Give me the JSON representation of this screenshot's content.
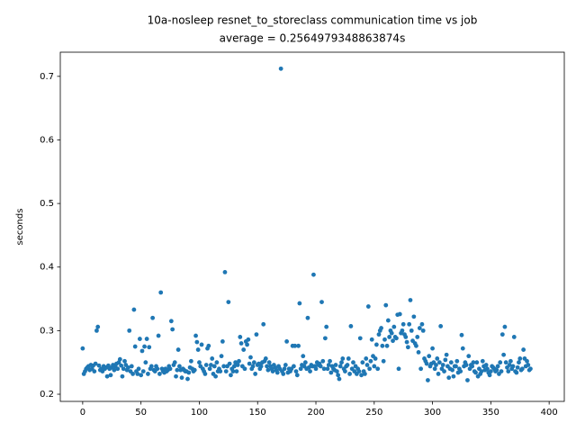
{
  "chart_data": {
    "type": "scatter",
    "title": "10a-nosleep resnet_to_storeclass communication time vs job",
    "subtitle": "average = 0.2564979348863874s",
    "y_label": "seconds",
    "color": "#1f77b4",
    "xlim": [
      -19.2,
      413
    ],
    "ylim": [
      0.1887,
      0.738
    ],
    "xticks": [
      0,
      50,
      100,
      150,
      200,
      250,
      300,
      350,
      400
    ],
    "yticks": [
      0.2,
      0.3,
      0.4,
      0.5,
      0.6,
      0.7
    ],
    "x": [
      0,
      1,
      2,
      3,
      4,
      5,
      6,
      7,
      8,
      9,
      10,
      11,
      12,
      13,
      14,
      15,
      16,
      17,
      18,
      19,
      20,
      21,
      22,
      23,
      24,
      25,
      26,
      27,
      28,
      29,
      30,
      31,
      32,
      33,
      34,
      35,
      36,
      37,
      38,
      39,
      40,
      41,
      42,
      43,
      44,
      45,
      46,
      47,
      48,
      49,
      50,
      51,
      52,
      53,
      54,
      55,
      56,
      57,
      58,
      59,
      60,
      61,
      62,
      63,
      64,
      65,
      66,
      67,
      68,
      69,
      70,
      71,
      72,
      73,
      74,
      75,
      76,
      77,
      78,
      79,
      80,
      81,
      82,
      83,
      84,
      85,
      86,
      87,
      88,
      89,
      90,
      91,
      92,
      93,
      94,
      95,
      96,
      97,
      98,
      99,
      100,
      101,
      102,
      103,
      104,
      105,
      106,
      107,
      108,
      109,
      110,
      111,
      112,
      113,
      114,
      115,
      116,
      117,
      118,
      119,
      120,
      121,
      122,
      123,
      124,
      125,
      126,
      127,
      128,
      129,
      130,
      131,
      132,
      133,
      134,
      135,
      136,
      137,
      138,
      139,
      140,
      141,
      142,
      143,
      144,
      145,
      146,
      147,
      148,
      149,
      150,
      151,
      152,
      153,
      154,
      155,
      156,
      157,
      158,
      159,
      160,
      161,
      162,
      163,
      164,
      165,
      166,
      167,
      168,
      169,
      170,
      171,
      172,
      173,
      174,
      175,
      176,
      177,
      178,
      179,
      180,
      181,
      182,
      183,
      184,
      185,
      186,
      187,
      188,
      189,
      190,
      191,
      192,
      193,
      194,
      195,
      196,
      197,
      198,
      199,
      200,
      201,
      202,
      203,
      204,
      205,
      206,
      207,
      208,
      209,
      210,
      211,
      212,
      213,
      214,
      215,
      216,
      217,
      218,
      219,
      220,
      221,
      222,
      223,
      224,
      225,
      226,
      227,
      228,
      229,
      230,
      231,
      232,
      233,
      234,
      235,
      236,
      237,
      238,
      239,
      240,
      241,
      242,
      243,
      244,
      245,
      246,
      247,
      248,
      249,
      250,
      251,
      252,
      253,
      254,
      255,
      256,
      257,
      258,
      259,
      260,
      261,
      262,
      263,
      264,
      265,
      266,
      267,
      268,
      269,
      270,
      271,
      272,
      273,
      274,
      275,
      276,
      277,
      278,
      279,
      280,
      281,
      282,
      283,
      284,
      285,
      286,
      287,
      288,
      289,
      290,
      291,
      292,
      293,
      294,
      295,
      296,
      297,
      298,
      299,
      300,
      301,
      302,
      303,
      304,
      305,
      306,
      307,
      308,
      309,
      310,
      311,
      312,
      313,
      314,
      315,
      316,
      317,
      318,
      319,
      320,
      321,
      322,
      323,
      324,
      325,
      326,
      327,
      328,
      329,
      330,
      331,
      332,
      333,
      334,
      335,
      336,
      337,
      338,
      339,
      340,
      341,
      342,
      343,
      344,
      345,
      346,
      347,
      348,
      349,
      350,
      351,
      352,
      353,
      354,
      355,
      356,
      357,
      358,
      359,
      360,
      361,
      362,
      363,
      364,
      365,
      366,
      367,
      368,
      369,
      370,
      371,
      372,
      373,
      374,
      375,
      376,
      377,
      378,
      379,
      380,
      381,
      382,
      383,
      384
    ],
    "values": [
      0.272,
      0.232,
      0.236,
      0.24,
      0.242,
      0.244,
      0.238,
      0.246,
      0.24,
      0.245,
      0.236,
      0.248,
      0.3,
      0.306,
      0.245,
      0.238,
      0.24,
      0.236,
      0.244,
      0.24,
      0.242,
      0.228,
      0.245,
      0.24,
      0.23,
      0.242,
      0.246,
      0.238,
      0.244,
      0.248,
      0.24,
      0.25,
      0.255,
      0.245,
      0.228,
      0.24,
      0.252,
      0.246,
      0.238,
      0.242,
      0.3,
      0.236,
      0.244,
      0.232,
      0.333,
      0.275,
      0.236,
      0.232,
      0.24,
      0.287,
      0.23,
      0.268,
      0.236,
      0.275,
      0.25,
      0.287,
      0.232,
      0.274,
      0.24,
      0.244,
      0.32,
      0.238,
      0.236,
      0.244,
      0.24,
      0.292,
      0.232,
      0.36,
      0.24,
      0.236,
      0.234,
      0.24,
      0.236,
      0.238,
      0.244,
      0.24,
      0.315,
      0.302,
      0.246,
      0.25,
      0.228,
      0.238,
      0.27,
      0.244,
      0.238,
      0.226,
      0.24,
      0.238,
      0.236,
      0.236,
      0.224,
      0.234,
      0.242,
      0.252,
      0.24,
      0.236,
      0.238,
      0.292,
      0.282,
      0.27,
      0.25,
      0.244,
      0.278,
      0.24,
      0.236,
      0.232,
      0.246,
      0.272,
      0.276,
      0.24,
      0.246,
      0.256,
      0.232,
      0.244,
      0.228,
      0.25,
      0.236,
      0.24,
      0.236,
      0.26,
      0.283,
      0.244,
      0.392,
      0.236,
      0.244,
      0.345,
      0.248,
      0.23,
      0.24,
      0.236,
      0.244,
      0.25,
      0.236,
      0.246,
      0.252,
      0.29,
      0.28,
      0.244,
      0.27,
      0.24,
      0.283,
      0.278,
      0.286,
      0.248,
      0.258,
      0.24,
      0.244,
      0.25,
      0.232,
      0.294,
      0.246,
      0.248,
      0.24,
      0.244,
      0.25,
      0.31,
      0.252,
      0.256,
      0.244,
      0.238,
      0.25,
      0.244,
      0.24,
      0.236,
      0.246,
      0.242,
      0.238,
      0.234,
      0.244,
      0.24,
      0.712,
      0.236,
      0.232,
      0.24,
      0.246,
      0.283,
      0.234,
      0.24,
      0.236,
      0.24,
      0.276,
      0.244,
      0.276,
      0.236,
      0.23,
      0.276,
      0.343,
      0.24,
      0.246,
      0.26,
      0.244,
      0.25,
      0.24,
      0.32,
      0.242,
      0.236,
      0.246,
      0.244,
      0.388,
      0.244,
      0.24,
      0.25,
      0.246,
      0.248,
      0.244,
      0.345,
      0.252,
      0.24,
      0.288,
      0.306,
      0.24,
      0.246,
      0.252,
      0.234,
      0.244,
      0.24,
      0.238,
      0.246,
      0.236,
      0.23,
      0.224,
      0.244,
      0.25,
      0.256,
      0.24,
      0.236,
      0.244,
      0.246,
      0.256,
      0.232,
      0.307,
      0.24,
      0.25,
      0.236,
      0.244,
      0.232,
      0.24,
      0.236,
      0.288,
      0.23,
      0.25,
      0.236,
      0.232,
      0.256,
      0.246,
      0.338,
      0.24,
      0.252,
      0.286,
      0.26,
      0.244,
      0.256,
      0.278,
      0.24,
      0.294,
      0.3,
      0.304,
      0.276,
      0.252,
      0.286,
      0.34,
      0.276,
      0.316,
      0.29,
      0.3,
      0.296,
      0.284,
      0.306,
      0.29,
      0.288,
      0.325,
      0.24,
      0.326,
      0.296,
      0.3,
      0.31,
      0.294,
      0.29,
      0.282,
      0.274,
      0.31,
      0.348,
      0.3,
      0.284,
      0.322,
      0.28,
      0.276,
      0.29,
      0.266,
      0.304,
      0.24,
      0.31,
      0.3,
      0.256,
      0.252,
      0.248,
      0.222,
      0.26,
      0.244,
      0.248,
      0.272,
      0.25,
      0.24,
      0.246,
      0.256,
      0.232,
      0.25,
      0.307,
      0.24,
      0.246,
      0.236,
      0.254,
      0.262,
      0.244,
      0.226,
      0.24,
      0.25,
      0.238,
      0.228,
      0.244,
      0.244,
      0.252,
      0.234,
      0.24,
      0.236,
      0.293,
      0.272,
      0.244,
      0.25,
      0.246,
      0.222,
      0.26,
      0.24,
      0.246,
      0.244,
      0.25,
      0.236,
      0.234,
      0.25,
      0.228,
      0.24,
      0.232,
      0.236,
      0.252,
      0.244,
      0.238,
      0.246,
      0.24,
      0.234,
      0.23,
      0.236,
      0.244,
      0.242,
      0.24,
      0.236,
      0.238,
      0.244,
      0.232,
      0.25,
      0.236,
      0.294,
      0.262,
      0.306,
      0.25,
      0.242,
      0.236,
      0.246,
      0.252,
      0.24,
      0.244,
      0.29,
      0.236,
      0.234,
      0.242,
      0.25,
      0.256,
      0.238,
      0.24,
      0.27,
      0.256,
      0.244,
      0.252,
      0.246,
      0.238,
      0.24
    ]
  }
}
